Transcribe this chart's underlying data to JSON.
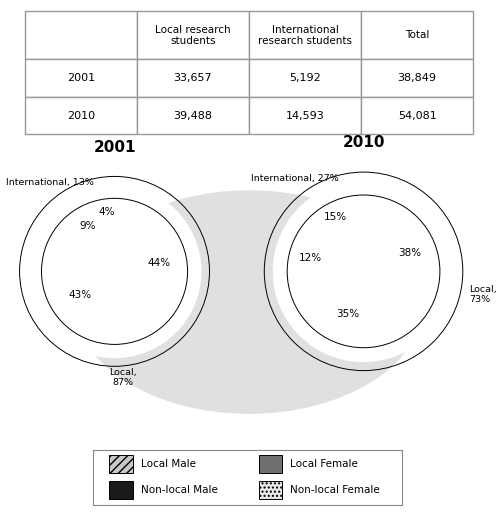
{
  "table": {
    "headers": [
      "",
      "Local research\nstudents",
      "International\nresearch students",
      "Total"
    ],
    "rows": [
      [
        "2001",
        "33,657",
        "5,192",
        "38,849"
      ],
      [
        "2010",
        "39,488",
        "14,593",
        "54,081"
      ]
    ]
  },
  "pie_2001": {
    "title": "2001",
    "values": [
      44,
      43,
      9,
      4
    ],
    "pct_labels": [
      "44%",
      "43%",
      "9%",
      "4%"
    ],
    "pct_radii": [
      0.62,
      0.6,
      0.72,
      0.8
    ],
    "int_label": "International, 13%",
    "local_label": "Local,\n87%",
    "startangle": 90
  },
  "pie_2010": {
    "title": "2010",
    "values": [
      38,
      35,
      12,
      15
    ],
    "pct_labels": [
      "38%",
      "35%",
      "12%",
      "15%"
    ],
    "pct_radii": [
      0.65,
      0.6,
      0.72,
      0.8
    ],
    "int_label": "International, 27%",
    "local_label": "Local,\n73%",
    "startangle": 90
  },
  "legend_labels": [
    "Local Male",
    "Local Female",
    "Non-local Male",
    "Non-local Female"
  ],
  "colors": [
    "#c8c8c8",
    "#707070",
    "#1a1a1a",
    "#e8e8e8"
  ],
  "hatches": [
    "////",
    "",
    "",
    "...."
  ],
  "background_color": "#ffffff",
  "watermark_color": "#e0e0e0",
  "ring_color": "#ffffff",
  "outer_ring_color": "#f5f5f5"
}
